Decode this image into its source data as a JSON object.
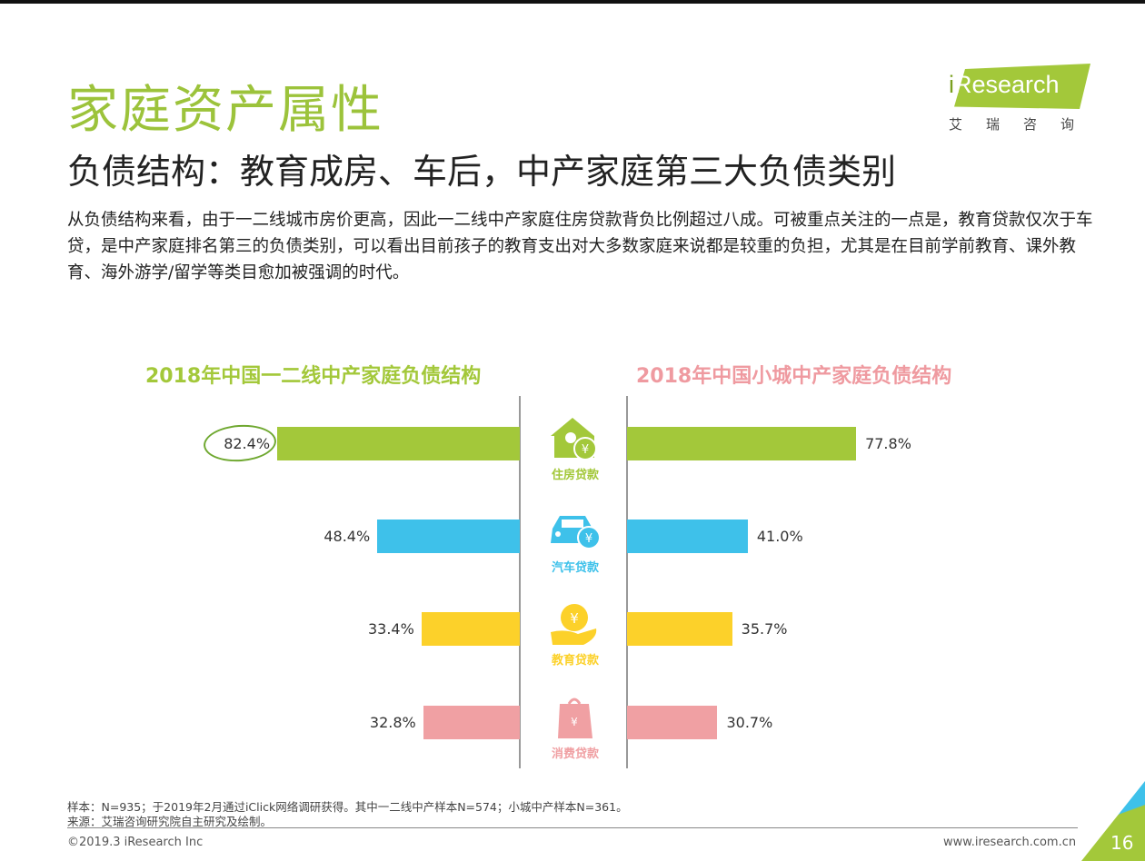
{
  "header": {
    "title": "家庭资产属性",
    "subtitle": "负债结构：教育成房、车后，中产家庭第三大负债类别",
    "description": "从负债结构来看，由于一二线城市房价更高，因此一二线中产家庭住房贷款背负比例超过八成。可被重点关注的一点是，教育贷款仅次于车贷，是中产家庭排名第三的负债类别，可以看出目前孩子的教育支出对大多数家庭来说都是较重的负担，尤其是在目前学前教育、课外教育、海外游学/留学等类目愈加被强调的时代。"
  },
  "logo": {
    "text": "iResearch",
    "cn": "艾瑞咨询"
  },
  "chart_data": {
    "type": "bar",
    "orientation": "horizontal-butterfly",
    "categories": [
      "住房贷款",
      "汽车贷款",
      "教育贷款",
      "消费贷款"
    ],
    "category_icons": [
      "house-yuan-icon",
      "car-yuan-icon",
      "hand-coin-icon",
      "shopping-bag-icon"
    ],
    "category_colors": [
      "#a3c83a",
      "#3ec1ea",
      "#fcd12a",
      "#f0a0a3"
    ],
    "series": [
      {
        "name": "2018年中国一二线中产家庭负债结构",
        "values": [
          82.4,
          48.4,
          33.4,
          32.8
        ],
        "labels": [
          "82.4%",
          "48.4%",
          "33.4%",
          "32.8%"
        ],
        "side": "left",
        "title_color": "#a3c83a"
      },
      {
        "name": "2018年中国小城中产家庭负债结构",
        "values": [
          77.8,
          41.0,
          35.7,
          30.7
        ],
        "labels": [
          "77.8%",
          "41.0%",
          "35.7%",
          "30.7%"
        ],
        "side": "right",
        "title_color": "#ef9aa0"
      }
    ],
    "unit": "%",
    "highlight": "82.4%"
  },
  "footer": {
    "sample": "样本：N=935；于2019年2月通过iClick网络调研获得。其中一二线中产样本N=574；小城中产样本N=361。",
    "source": "来源：艾瑞咨询研究院自主研究及绘制。",
    "copyright": "©2019.3 iResearch Inc",
    "url": "www.iresearch.com.cn",
    "page": "16"
  }
}
